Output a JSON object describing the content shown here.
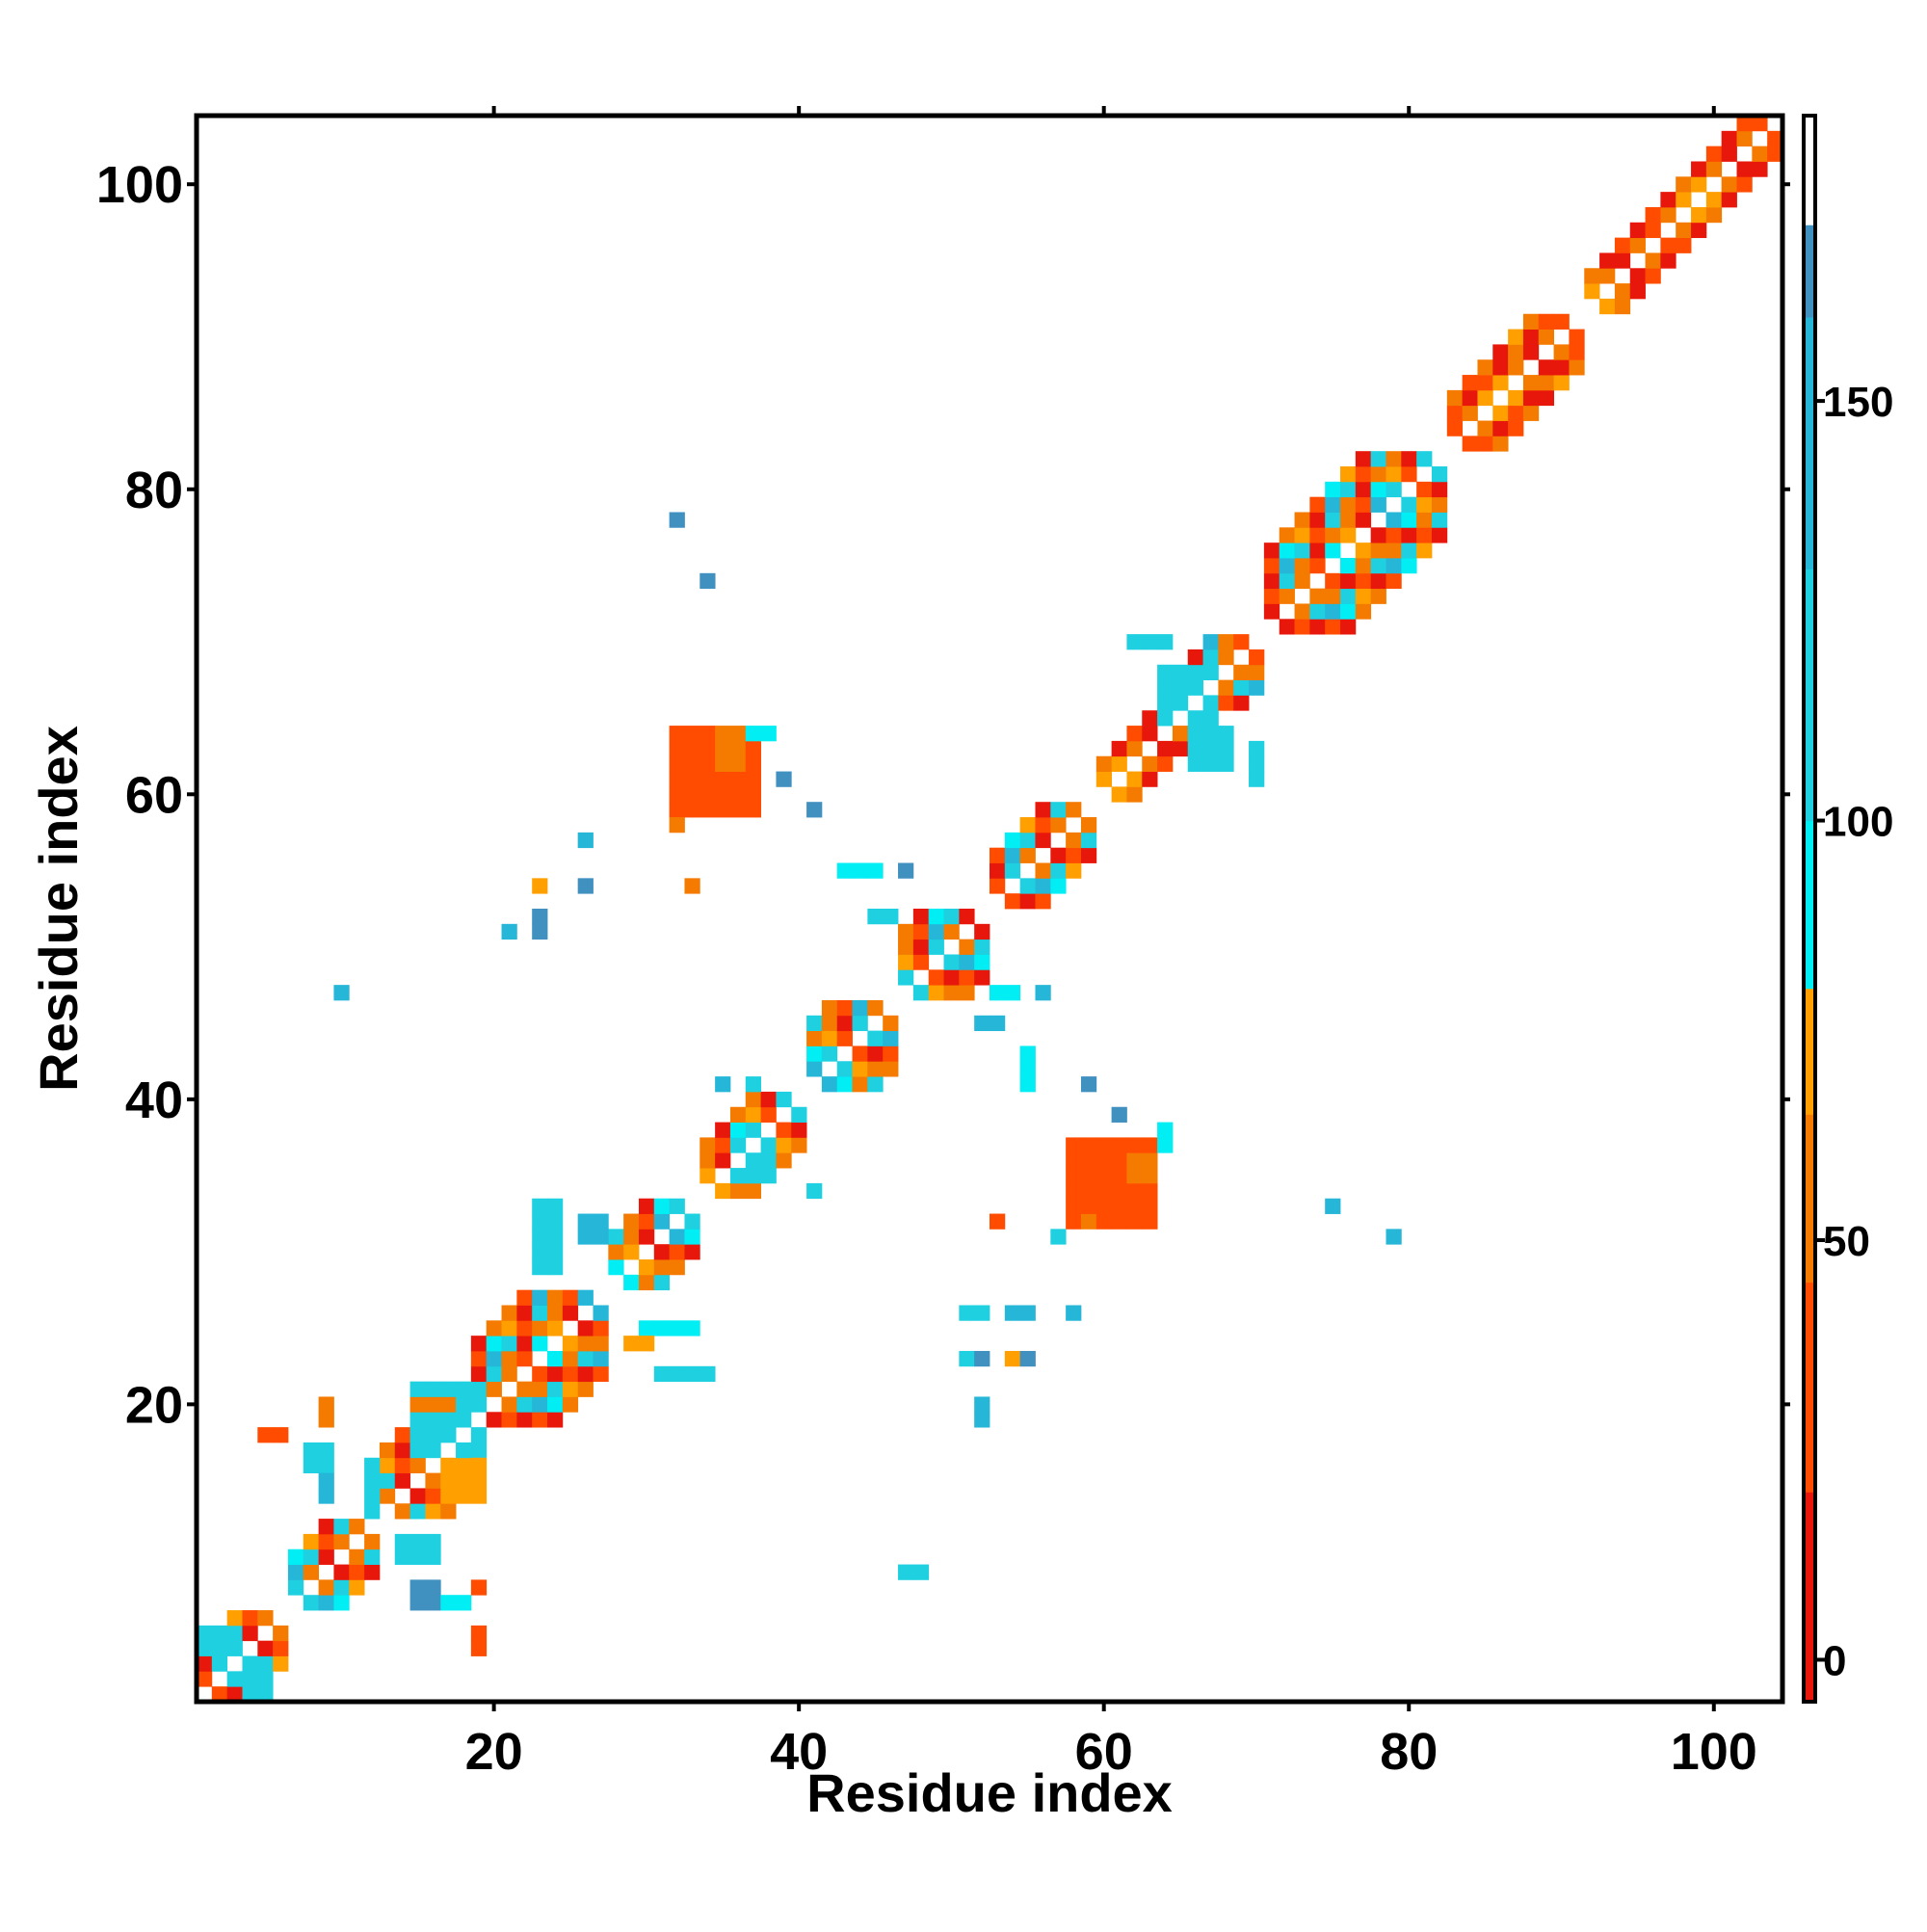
{
  "chart_data": {
    "type": "heatmap",
    "title": "",
    "xlabel": "Residue index",
    "ylabel": "Residue index",
    "xlim": [
      1,
      104
    ],
    "ylim": [
      1,
      104
    ],
    "xticks": [
      20,
      40,
      60,
      80,
      100
    ],
    "yticks": [
      20,
      40,
      60,
      80,
      100
    ],
    "grid": false,
    "colorbar": {
      "position": "right",
      "range": [
        -5,
        184
      ],
      "ticks": [
        0,
        50,
        100,
        150
      ],
      "bands": [
        {
          "from": -5,
          "to": 20,
          "color": "#e8170c"
        },
        {
          "from": 20,
          "to": 45,
          "color": "#ff4c00"
        },
        {
          "from": 45,
          "to": 65,
          "color": "#f57a00"
        },
        {
          "from": 65,
          "to": 80,
          "color": "#ffa000"
        },
        {
          "from": 80,
          "to": 100,
          "color": "#00eef4"
        },
        {
          "from": 100,
          "to": 130,
          "color": "#1ed0e0"
        },
        {
          "from": 130,
          "to": 160,
          "color": "#26b6d8"
        },
        {
          "from": 160,
          "to": 171,
          "color": "#4090c0"
        },
        {
          "from": 171,
          "to": 184,
          "color": "#ffffff"
        }
      ]
    },
    "colors": {
      "red": "#e8170c",
      "red_orange": "#ff4c00",
      "orange": "#f57a00",
      "light_orange": "#ffa000",
      "cyan": "#00eef4",
      "turquoise": "#1ed0e0",
      "sky": "#26b6d8",
      "steel_blue": "#4090c0"
    },
    "diagonal_pattern": [
      "orange",
      "red",
      "orange",
      "turquoise",
      "red_orange",
      "turquoise",
      "light_orange",
      "red",
      "sky",
      "orange",
      "red_orange",
      "cyan"
    ],
    "diagonal_segments": [
      {
        "from": 1,
        "to": 6,
        "band": 3,
        "cyclic": true
      },
      {
        "from": 7,
        "to": 12,
        "band": 3,
        "cyclic": true
      },
      {
        "from": 13,
        "to": 18,
        "band": 4,
        "cyclic": true
      },
      {
        "from": 19,
        "to": 27,
        "band": 5,
        "cyclic": true
      },
      {
        "from": 28,
        "to": 33,
        "band": 3,
        "cyclic": true
      },
      {
        "from": 34,
        "to": 40,
        "band": 3,
        "cyclic": true
      },
      {
        "from": 41,
        "to": 46,
        "band": 4,
        "cyclic": true
      },
      {
        "from": 47,
        "to": 52,
        "band": 4,
        "cyclic": true
      },
      {
        "from": 53,
        "to": 59,
        "band": 3,
        "cyclic": true
      },
      {
        "from": 60,
        "to": 65,
        "band": 2,
        "cyclic": false
      },
      {
        "from": 66,
        "to": 70,
        "band": 3,
        "cyclic": true
      },
      {
        "from": 71,
        "to": 82,
        "band": 5,
        "cyclic": true
      },
      {
        "from": 83,
        "to": 91,
        "band": 3,
        "cyclic": false
      },
      {
        "from": 92,
        "to": 104,
        "band": 2,
        "cyclic": false
      }
    ],
    "diagonal_offset_colors": {
      "1": [
        "light_orange",
        "orange",
        "red",
        "orange",
        "red_orange",
        "orange",
        "light_orange"
      ],
      "2": [
        "red",
        "red_orange",
        "red",
        "orange",
        "red",
        "red_orange"
      ],
      "3": [
        "orange",
        "red_orange",
        "orange",
        "red",
        "light_orange"
      ],
      "4": [
        "red_orange",
        "orange",
        "red_orange"
      ],
      "5": [
        "orange",
        "red",
        "red_orange"
      ]
    },
    "off_diagonal_blocks": [
      {
        "x": [
          32,
          38
        ],
        "y": [
          59,
          65
        ],
        "color": "red_orange"
      },
      {
        "x": [
          35,
          37
        ],
        "y": [
          62,
          65
        ],
        "color": "orange"
      },
      {
        "x": [
          32,
          33
        ],
        "y": [
          58,
          59
        ],
        "color": "orange"
      },
      {
        "x": [
          37,
          39
        ],
        "y": [
          64,
          65
        ],
        "color": "cyan"
      },
      {
        "x": [
          39,
          40
        ],
        "y": [
          61,
          62
        ],
        "color": "steel_blue"
      },
      {
        "x": [
          58,
          64
        ],
        "y": [
          32,
          38
        ],
        "color": "red_orange"
      },
      {
        "x": [
          62,
          64
        ],
        "y": [
          35,
          37
        ],
        "color": "orange"
      },
      {
        "x": [
          59,
          60
        ],
        "y": [
          32,
          33
        ],
        "color": "orange"
      },
      {
        "x": [
          64,
          65
        ],
        "y": [
          37,
          39
        ],
        "color": "cyan"
      },
      {
        "x": [
          61,
          62
        ],
        "y": [
          39,
          40
        ],
        "color": "steel_blue"
      },
      {
        "x": [
          21,
          22
        ],
        "y": [
          51,
          52
        ],
        "color": "sky"
      },
      {
        "x": [
          23,
          24
        ],
        "y": [
          51,
          53
        ],
        "color": "steel_blue"
      },
      {
        "x": [
          23,
          24
        ],
        "y": [
          54,
          55
        ],
        "color": "light_orange"
      },
      {
        "x": [
          26,
          27
        ],
        "y": [
          54,
          55
        ],
        "color": "steel_blue"
      },
      {
        "x": [
          26,
          27
        ],
        "y": [
          57,
          58
        ],
        "color": "sky"
      },
      {
        "x": [
          10,
          11
        ],
        "y": [
          47,
          48
        ],
        "color": "sky"
      },
      {
        "x": [
          32,
          33
        ],
        "y": [
          78,
          79
        ],
        "color": "steel_blue"
      },
      {
        "x": [
          34,
          35
        ],
        "y": [
          74,
          75
        ],
        "color": "steel_blue"
      },
      {
        "x": [
          41,
          42
        ],
        "y": [
          59,
          60
        ],
        "color": "steel_blue"
      },
      {
        "x": [
          33,
          34
        ],
        "y": [
          54,
          55
        ],
        "color": "orange"
      },
      {
        "x": [
          43,
          46
        ],
        "y": [
          55,
          56
        ],
        "color": "cyan"
      },
      {
        "x": [
          47,
          48
        ],
        "y": [
          55,
          56
        ],
        "color": "steel_blue"
      },
      {
        "x": [
          45,
          47
        ],
        "y": [
          52,
          53
        ],
        "color": "turquoise"
      },
      {
        "x": [
          52,
          54
        ],
        "y": [
          45,
          46
        ],
        "color": "sky"
      },
      {
        "x": [
          53,
          55
        ],
        "y": [
          47,
          48
        ],
        "color": "cyan"
      },
      {
        "x": [
          56,
          57
        ],
        "y": [
          47,
          48
        ],
        "color": "sky"
      },
      {
        "x": [
          55,
          56
        ],
        "y": [
          41,
          44
        ],
        "color": "cyan"
      },
      {
        "x": [
          59,
          60
        ],
        "y": [
          41,
          42
        ],
        "color": "steel_blue"
      },
      {
        "x": [
          36,
          39
        ],
        "y": [
          35,
          38
        ],
        "color": "turquoise"
      },
      {
        "x": [
          35,
          36
        ],
        "y": [
          41,
          42
        ],
        "color": "sky"
      },
      {
        "x": [
          37,
          38
        ],
        "y": [
          41,
          42
        ],
        "color": "turquoise"
      },
      {
        "x": [
          41,
          42
        ],
        "y": [
          34,
          35
        ],
        "color": "turquoise"
      },
      {
        "x": [
          64,
          68
        ],
        "y": [
          65,
          69
        ],
        "color": "turquoise"
      },
      {
        "x": [
          62,
          65
        ],
        "y": [
          70,
          71
        ],
        "color": "turquoise"
      },
      {
        "x": [
          70,
          71
        ],
        "y": [
          61,
          64
        ],
        "color": "turquoise"
      },
      {
        "x": [
          66,
          69
        ],
        "y": [
          62,
          65
        ],
        "color": "turquoise"
      },
      {
        "x": [
          75,
          76
        ],
        "y": [
          33,
          34
        ],
        "color": "sky"
      },
      {
        "x": [
          79,
          80
        ],
        "y": [
          31,
          32
        ],
        "color": "sky"
      },
      {
        "x": [
          53,
          54
        ],
        "y": [
          32,
          33
        ],
        "color": "red_orange"
      },
      {
        "x": [
          57,
          58
        ],
        "y": [
          31,
          32
        ],
        "color": "turquoise"
      },
      {
        "x": [
          51,
          53
        ],
        "y": [
          26,
          27
        ],
        "color": "turquoise"
      },
      {
        "x": [
          54,
          56
        ],
        "y": [
          26,
          27
        ],
        "color": "sky"
      },
      {
        "x": [
          58,
          59
        ],
        "y": [
          26,
          27
        ],
        "color": "sky"
      },
      {
        "x": [
          51,
          52
        ],
        "y": [
          23,
          24
        ],
        "color": "turquoise"
      },
      {
        "x": [
          52,
          53
        ],
        "y": [
          23,
          24
        ],
        "color": "steel_blue"
      },
      {
        "x": [
          54,
          55
        ],
        "y": [
          23,
          24
        ],
        "color": "light_orange"
      },
      {
        "x": [
          55,
          56
        ],
        "y": [
          23,
          24
        ],
        "color": "steel_blue"
      },
      {
        "x": [
          52,
          53
        ],
        "y": [
          19,
          21
        ],
        "color": "sky"
      },
      {
        "x": [
          47,
          49
        ],
        "y": [
          9,
          10
        ],
        "color": "turquoise"
      },
      {
        "x": [
          31,
          35
        ],
        "y": [
          22,
          23
        ],
        "color": "turquoise"
      },
      {
        "x": [
          30,
          34
        ],
        "y": [
          25,
          26
        ],
        "color": "cyan"
      },
      {
        "x": [
          29,
          31
        ],
        "y": [
          24,
          25
        ],
        "color": "light_orange"
      },
      {
        "x": [
          23,
          25
        ],
        "y": [
          29,
          34
        ],
        "color": "turquoise"
      },
      {
        "x": [
          26,
          28
        ],
        "y": [
          31,
          33
        ],
        "color": "sky"
      },
      {
        "x": [
          15,
          20
        ],
        "y": [
          17,
          22
        ],
        "color": "turquoise"
      },
      {
        "x": [
          15,
          18
        ],
        "y": [
          20,
          21
        ],
        "color": "orange"
      },
      {
        "x": [
          17,
          20
        ],
        "y": [
          14,
          17
        ],
        "color": "light_orange"
      },
      {
        "x": [
          12,
          13
        ],
        "y": [
          13,
          17
        ],
        "color": "turquoise"
      },
      {
        "x": [
          8,
          10
        ],
        "y": [
          16,
          18
        ],
        "color": "turquoise"
      },
      {
        "x": [
          9,
          10
        ],
        "y": [
          14,
          16
        ],
        "color": "sky"
      },
      {
        "x": [
          9,
          10
        ],
        "y": [
          19,
          21
        ],
        "color": "orange"
      },
      {
        "x": [
          5,
          7
        ],
        "y": [
          18,
          19
        ],
        "color": "red_orange"
      },
      {
        "x": [
          14,
          17
        ],
        "y": [
          10,
          12
        ],
        "color": "turquoise"
      },
      {
        "x": [
          15,
          17
        ],
        "y": [
          7,
          9
        ],
        "color": "steel_blue"
      },
      {
        "x": [
          17,
          19
        ],
        "y": [
          7,
          8
        ],
        "color": "cyan"
      },
      {
        "x": [
          19,
          20
        ],
        "y": [
          8,
          9
        ],
        "color": "red_orange"
      },
      {
        "x": [
          19,
          20
        ],
        "y": [
          4,
          6
        ],
        "color": "red_orange"
      },
      {
        "x": [
          1,
          4
        ],
        "y": [
          4,
          6
        ],
        "color": "turquoise"
      },
      {
        "x": [
          4,
          6
        ],
        "y": [
          1,
          4
        ],
        "color": "turquoise"
      }
    ]
  }
}
